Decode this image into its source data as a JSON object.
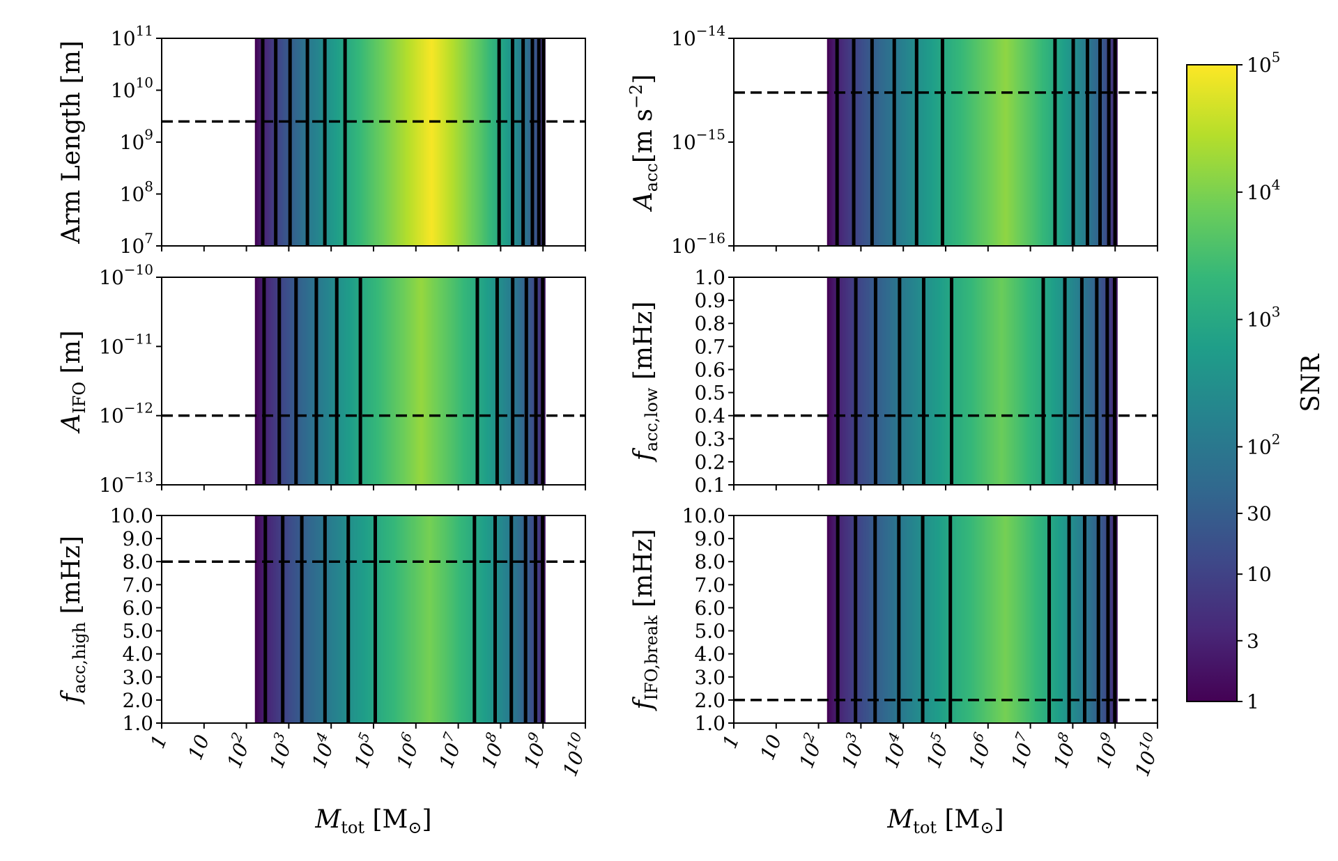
{
  "figure": {
    "colormap": "viridis",
    "colormap_stops": [
      "#440154",
      "#482878",
      "#3e4989",
      "#31688e",
      "#26828e",
      "#1f9e89",
      "#35b779",
      "#6ece58",
      "#b5de2b",
      "#fde725"
    ],
    "contour_color": "#000000",
    "reference_line_style": "dashed"
  },
  "colorbar": {
    "label": "SNR",
    "scale": "log",
    "range": [
      1,
      100000
    ],
    "ticks": [
      {
        "value": 1,
        "label": "1"
      },
      {
        "value": 3,
        "label": "3"
      },
      {
        "value": 10,
        "label": "10"
      },
      {
        "value": 30,
        "label": "30"
      },
      {
        "value": 100,
        "label": "10",
        "sup": "2"
      },
      {
        "value": 1000,
        "label": "10",
        "sup": "3"
      },
      {
        "value": 10000,
        "label": "10",
        "sup": "4"
      },
      {
        "value": 100000,
        "label": "10",
        "sup": "5"
      }
    ]
  },
  "x_axis": {
    "label": "M",
    "label_sub": "tot",
    "label_unit": "[M",
    "label_unit_sub": "⊙",
    "label_unit_end": "]",
    "scale": "log",
    "range": [
      1,
      10000000000
    ],
    "ticks": [
      {
        "value": 1,
        "label": "1"
      },
      {
        "value": 10,
        "label": "10"
      },
      {
        "value": 100,
        "label": "10",
        "sup": "2"
      },
      {
        "value": 1000,
        "label": "10",
        "sup": "3"
      },
      {
        "value": 10000,
        "label": "10",
        "sup": "4"
      },
      {
        "value": 100000,
        "label": "10",
        "sup": "5"
      },
      {
        "value": 1000000,
        "label": "10",
        "sup": "6"
      },
      {
        "value": 10000000,
        "label": "10",
        "sup": "7"
      },
      {
        "value": 100000000,
        "label": "10",
        "sup": "8"
      },
      {
        "value": 1000000000,
        "label": "10",
        "sup": "9"
      },
      {
        "value": 10000000000,
        "label": "10",
        "sup": "10"
      }
    ]
  },
  "chart_data": [
    {
      "type": "heatmap",
      "id": "arm_length",
      "ylabel": "Arm Length [m]",
      "ylabel_parts": [
        {
          "t": "Arm Length [m]"
        }
      ],
      "yscale": "log",
      "ylim": [
        10000000,
        100000000000
      ],
      "yticks": [
        {
          "value": 10000000,
          "label": "10",
          "sup": "7"
        },
        {
          "value": 100000000,
          "label": "10",
          "sup": "8"
        },
        {
          "value": 1000000000,
          "label": "10",
          "sup": "9"
        },
        {
          "value": 10000000000,
          "label": "10",
          "sup": "10"
        },
        {
          "value": 100000000000,
          "label": "10",
          "sup": "11"
        }
      ],
      "reference_value": 2500000000,
      "peak_log_mass": 6.35,
      "peak_log_snr": 4.95
    },
    {
      "type": "heatmap",
      "id": "a_acc",
      "ylabel": "A_acc [m s^-2]",
      "ylabel_parts": [
        {
          "t": "A",
          "i": true
        },
        {
          "t": "acc",
          "sub": true
        },
        {
          "t": "[m s"
        },
        {
          "t": "−2",
          "sup": true
        },
        {
          "t": "]"
        }
      ],
      "yscale": "log",
      "ylim": [
        1e-16,
        1e-14
      ],
      "yticks": [
        {
          "value": 1e-16,
          "label": "10",
          "sup": "−16"
        },
        {
          "value": 1e-15,
          "label": "10",
          "sup": "−15"
        },
        {
          "value": 1e-14,
          "label": "10",
          "sup": "−14"
        }
      ],
      "reference_value": 3e-15,
      "peak_log_mass": 6.4,
      "peak_log_snr": 4.15
    },
    {
      "type": "heatmap",
      "id": "a_ifo",
      "ylabel": "A_IFO [m]",
      "ylabel_parts": [
        {
          "t": "A",
          "i": true
        },
        {
          "t": "IFO",
          "sub": true
        },
        {
          "t": " [m]"
        }
      ],
      "yscale": "log",
      "ylim": [
        1e-13,
        1e-10
      ],
      "yticks": [
        {
          "value": 1e-13,
          "label": "10",
          "sup": "−13"
        },
        {
          "value": 1e-12,
          "label": "10",
          "sup": "−12"
        },
        {
          "value": 1e-11,
          "label": "10",
          "sup": "−11"
        },
        {
          "value": 1e-10,
          "label": "10",
          "sup": "−10"
        }
      ],
      "reference_value": 1e-12,
      "peak_log_mass": 6.1,
      "peak_log_snr": 4.2
    },
    {
      "type": "heatmap",
      "id": "f_acc_low",
      "ylabel": "f_acc,low [mHz]",
      "ylabel_parts": [
        {
          "t": "f",
          "i": true
        },
        {
          "t": "acc,low",
          "sub": true
        },
        {
          "t": " [mHz]"
        }
      ],
      "yscale": "linear",
      "ylim": [
        0.1,
        1.0
      ],
      "yticks": [
        {
          "value": 0.1,
          "label": "0.1"
        },
        {
          "value": 0.2,
          "label": "0.2"
        },
        {
          "value": 0.3,
          "label": "0.3"
        },
        {
          "value": 0.4,
          "label": "0.4"
        },
        {
          "value": 0.5,
          "label": "0.5"
        },
        {
          "value": 0.6,
          "label": "0.6"
        },
        {
          "value": 0.7,
          "label": "0.7"
        },
        {
          "value": 0.8,
          "label": "0.8"
        },
        {
          "value": 0.9,
          "label": "0.9"
        },
        {
          "value": 1.0,
          "label": "1.0"
        }
      ],
      "reference_value": 0.4,
      "peak_log_mass": 6.3,
      "peak_log_snr": 3.85
    },
    {
      "type": "heatmap",
      "id": "f_acc_high",
      "ylabel": "f_acc,high [mHz]",
      "ylabel_parts": [
        {
          "t": "f",
          "i": true
        },
        {
          "t": "acc,high",
          "sub": true
        },
        {
          "t": " [mHz]"
        }
      ],
      "yscale": "linear",
      "ylim": [
        1.0,
        10.0
      ],
      "yticks": [
        {
          "value": 1,
          "label": "1.0"
        },
        {
          "value": 2,
          "label": "2.0"
        },
        {
          "value": 3,
          "label": "3.0"
        },
        {
          "value": 4,
          "label": "4.0"
        },
        {
          "value": 5,
          "label": "5.0"
        },
        {
          "value": 6,
          "label": "6.0"
        },
        {
          "value": 7,
          "label": "7.0"
        },
        {
          "value": 8,
          "label": "8.0"
        },
        {
          "value": 9,
          "label": "9.0"
        },
        {
          "value": 10,
          "label": "10.0"
        }
      ],
      "reference_value": 8.0,
      "peak_log_mass": 6.3,
      "peak_log_snr": 3.95
    },
    {
      "type": "heatmap",
      "id": "f_ifo_break",
      "ylabel": "f_IFO,break [mHz]",
      "ylabel_parts": [
        {
          "t": "f",
          "i": true
        },
        {
          "t": "IFO,break",
          "sub": true
        },
        {
          "t": " [mHz]"
        }
      ],
      "yscale": "linear",
      "ylim": [
        1.0,
        10.0
      ],
      "yticks": [
        {
          "value": 1,
          "label": "1.0"
        },
        {
          "value": 2,
          "label": "2.0"
        },
        {
          "value": 3,
          "label": "3.0"
        },
        {
          "value": 4,
          "label": "4.0"
        },
        {
          "value": 5,
          "label": "5.0"
        },
        {
          "value": 6,
          "label": "6.0"
        },
        {
          "value": 7,
          "label": "7.0"
        },
        {
          "value": 8,
          "label": "8.0"
        },
        {
          "value": 9,
          "label": "9.0"
        },
        {
          "value": 10,
          "label": "10.0"
        }
      ],
      "reference_value": 2.0,
      "peak_log_mass": 6.4,
      "peak_log_snr": 3.95
    }
  ]
}
